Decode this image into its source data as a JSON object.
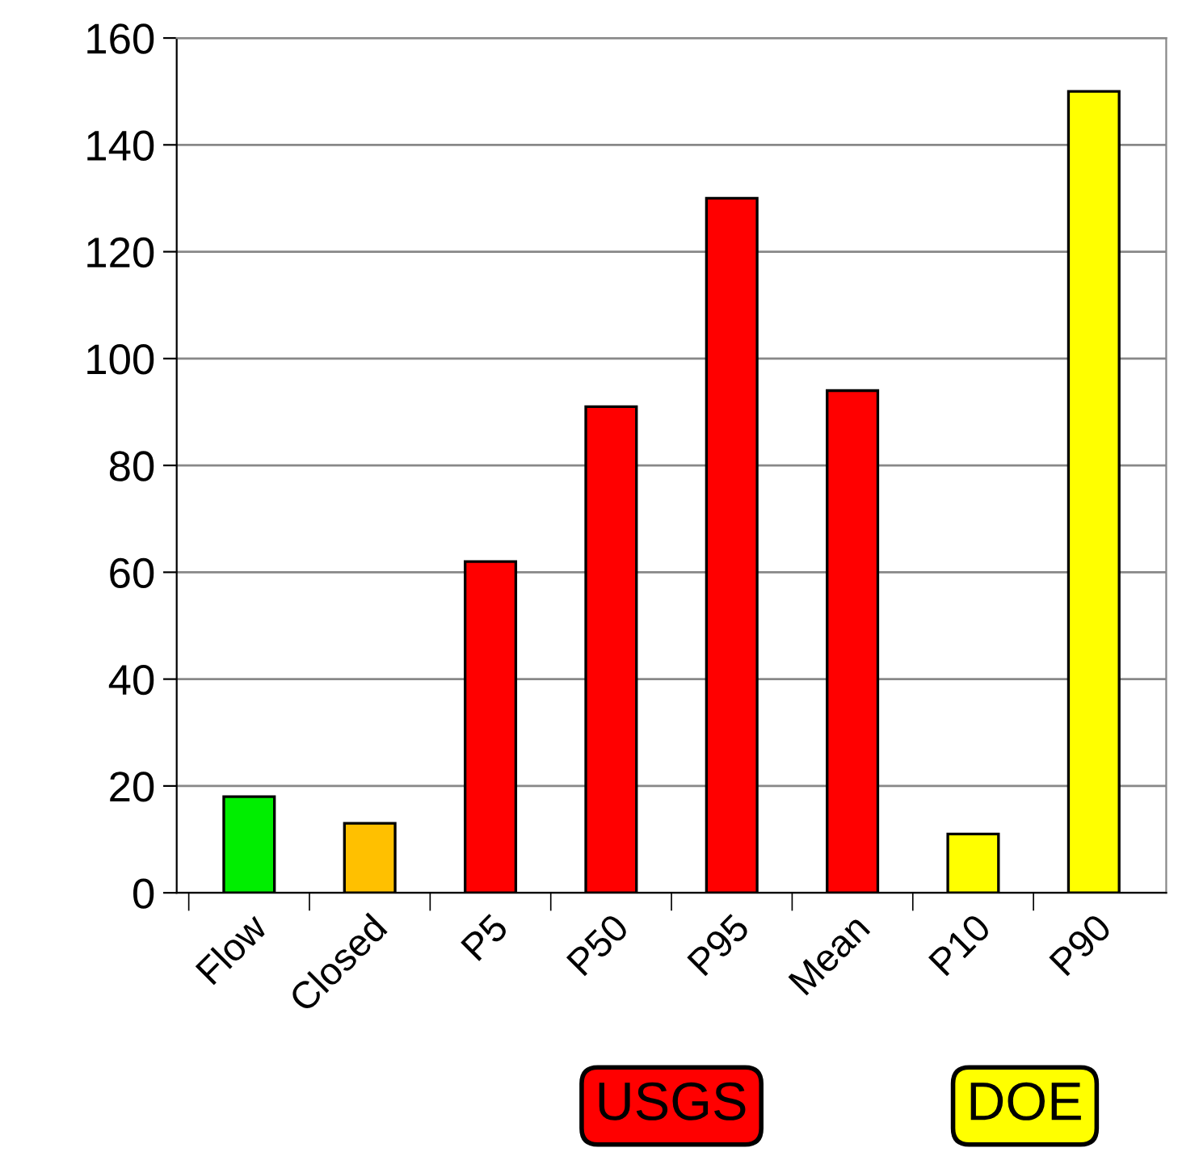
{
  "chart_data": {
    "type": "bar",
    "categories": [
      "Flow",
      "Closed",
      "P5",
      "P50",
      "P95",
      "Mean",
      "P10",
      "P90"
    ],
    "series": [
      {
        "colors": [
          "#00ee00",
          "#ffc000",
          "#ff0000",
          "#ff0000",
          "#ff0000",
          "#ff0000",
          "#ffff00",
          "#ffff00"
        ],
        "values": [
          18,
          13,
          null,
          null,
          null,
          null,
          null,
          null
        ]
      },
      {
        "name": "USGS",
        "color": "#ff0000",
        "values": [
          null,
          null,
          62,
          91,
          130,
          94,
          null,
          null
        ]
      },
      {
        "name": "DOE",
        "color": "#ffff00",
        "values": [
          null,
          null,
          null,
          null,
          null,
          null,
          11,
          150
        ]
      }
    ],
    "ylim": [
      0,
      160
    ],
    "yticks": [
      0,
      20,
      40,
      60,
      80,
      100,
      120,
      140,
      160
    ],
    "grid": "y",
    "legend": "bottom"
  }
}
